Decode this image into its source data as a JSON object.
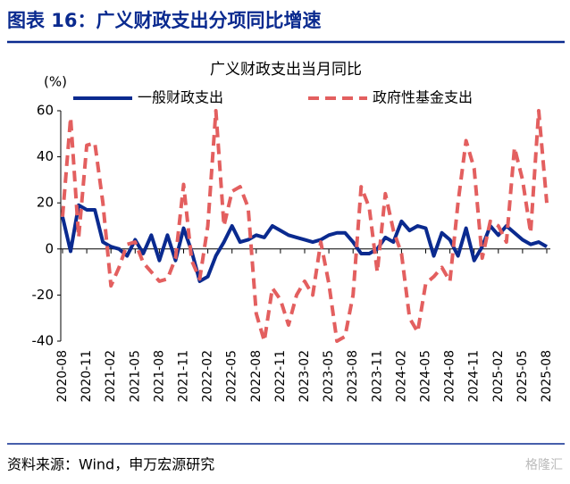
{
  "header": {
    "title": "图表 16：广义财政支出分项同比增速"
  },
  "chart_data": {
    "type": "line",
    "title": "广义财政支出当月同比",
    "y_label": "(%)",
    "categories": [
      "2020-08",
      null,
      null,
      "2020-11",
      null,
      null,
      "2021-02",
      null,
      null,
      "2021-05",
      null,
      null,
      "2021-08",
      null,
      null,
      "2021-11",
      null,
      null,
      "2022-02",
      null,
      null,
      "2022-05",
      null,
      null,
      "2022-08",
      null,
      null,
      "2022-11",
      null,
      null,
      "2023-02",
      null,
      null,
      "2023-05",
      null,
      null,
      "2023-08",
      null,
      null,
      "2023-11",
      null,
      null,
      "2024-02",
      null,
      null,
      "2024-05",
      null,
      null,
      "2024-08",
      null,
      null,
      "2024-11",
      null,
      null,
      "2025-02",
      null,
      null,
      "2025-05",
      null,
      null,
      "2025-08"
    ],
    "series": [
      {
        "name": "一般财政支出",
        "color": "#0a2a8f",
        "dash": false,
        "values": [
          14,
          -1,
          19,
          17,
          17,
          3,
          1,
          0,
          -3,
          4,
          -2,
          6,
          -5,
          6,
          -5,
          9,
          -1,
          -14,
          -12,
          -3,
          3,
          10,
          3,
          4,
          6,
          5,
          10,
          8,
          6,
          5,
          4,
          3,
          4,
          6,
          7,
          7,
          3,
          -2,
          -2,
          0,
          5,
          3,
          12,
          8,
          10,
          9,
          -3,
          7,
          4,
          -3,
          9,
          -5,
          1,
          10,
          6,
          10,
          7,
          4,
          2,
          3,
          1
        ]
      },
      {
        "name": "政府性基金支出",
        "color": "#e35f5f",
        "dash": true,
        "values": [
          14,
          57,
          5,
          45,
          46,
          20,
          -16,
          -8,
          2,
          3,
          -6,
          -10,
          -14,
          -13,
          -4,
          28,
          -5,
          -13,
          10,
          60,
          10,
          25,
          27,
          18,
          -28,
          -40,
          -17,
          -22,
          -33,
          -20,
          -14,
          -20,
          3,
          -15,
          -40,
          -38,
          -20,
          27,
          18,
          -10,
          24,
          8,
          -2,
          -30,
          -36,
          -15,
          -12,
          -8,
          -14,
          20,
          47,
          35,
          -4,
          12,
          10,
          3,
          44,
          30,
          7,
          60,
          20
        ]
      }
    ],
    "ylim": [
      -40,
      60
    ],
    "yticks": [
      -40,
      -20,
      0,
      20,
      40,
      60
    ],
    "legend": "top"
  },
  "footer": {
    "source": "资料来源：Wind，申万宏源研究",
    "watermark": "格隆汇"
  }
}
